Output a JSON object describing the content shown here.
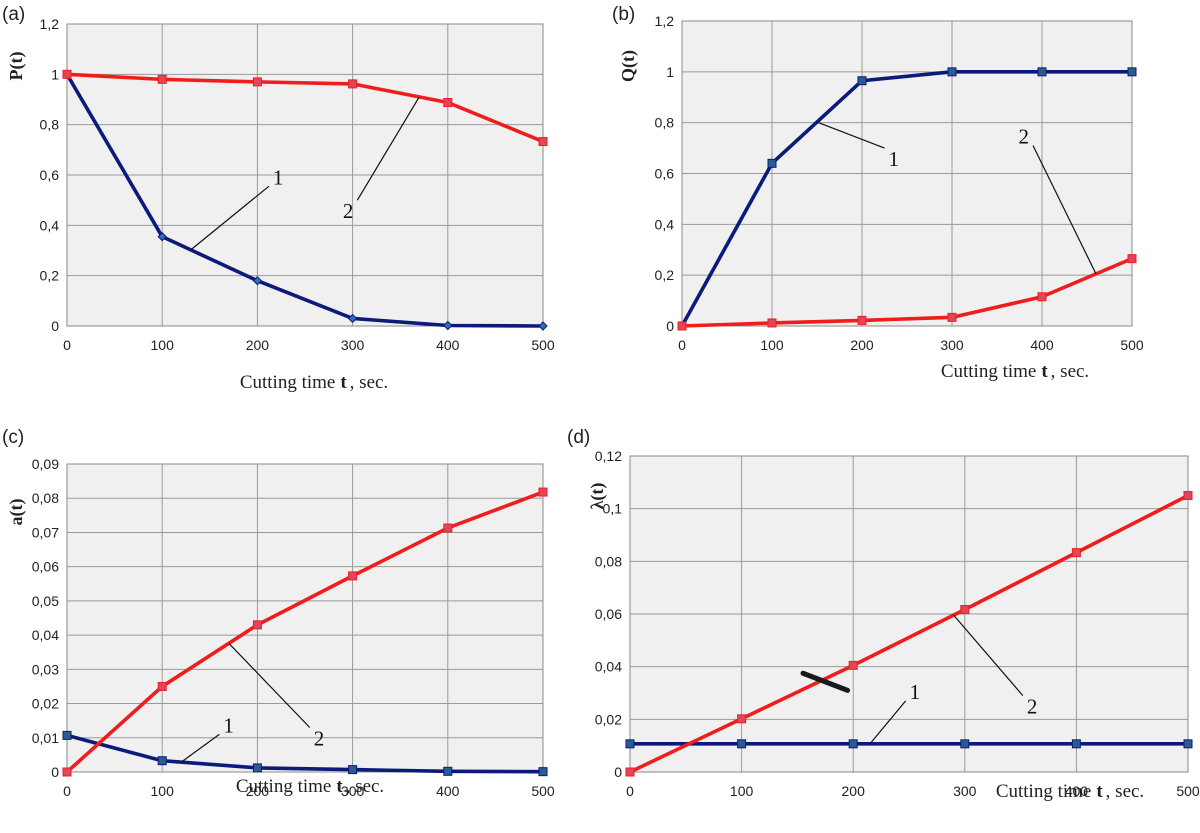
{
  "figure": {
    "background": "#ffffff",
    "plot_background": "#f0f0f0",
    "grid_color": "#9a9a9a"
  },
  "chart_data": [
    {
      "id": "a",
      "type": "line",
      "panel_label": "(a)",
      "ylabel": "P(t)",
      "xlabel": "Cutting time",
      "xlabel_var": "t",
      "xlabel_unit": ", sec.",
      "x": [
        0,
        100,
        200,
        300,
        400,
        500
      ],
      "xlim": [
        0,
        500
      ],
      "xticks": [
        "0",
        "100",
        "200",
        "300",
        "400",
        "500"
      ],
      "ylim": [
        0,
        1.2
      ],
      "yticks": [
        0,
        0.2,
        0.4,
        0.6,
        0.8,
        1,
        1.2
      ],
      "ytick_labels": [
        "0",
        "0,2",
        "0,4",
        "0,6",
        "0,8",
        "1",
        "1,2"
      ],
      "grid": true,
      "series": [
        {
          "name": "1",
          "color": "#0c1a7a",
          "marker": "diamond",
          "values": [
            1.0,
            0.355,
            0.18,
            0.03,
            0.002,
            0.0
          ]
        },
        {
          "name": "2",
          "color": "#f01d1d",
          "marker": "square",
          "values": [
            1.0,
            0.98,
            0.97,
            0.962,
            0.888,
            0.733
          ]
        }
      ],
      "annotations": [
        {
          "text": "1",
          "series": 0,
          "point_x": 130,
          "label_x": 212,
          "label_y": 0.555
        },
        {
          "text": "2",
          "series": 1,
          "point_x": 370,
          "label_x": 305,
          "label_y": 0.5
        }
      ]
    },
    {
      "id": "b",
      "type": "line",
      "panel_label": "(b)",
      "ylabel": "Q(t)",
      "xlabel": "Cutting time",
      "xlabel_var": "t",
      "xlabel_unit": ", sec.",
      "x": [
        0,
        100,
        200,
        300,
        400,
        500
      ],
      "xlim": [
        0,
        500
      ],
      "xticks": [
        "0",
        "100",
        "200",
        "300",
        "400",
        "500"
      ],
      "ylim": [
        0,
        1.2
      ],
      "yticks": [
        0,
        0.2,
        0.4,
        0.6,
        0.8,
        1,
        1.2
      ],
      "ytick_labels": [
        "0",
        "0,2",
        "0,4",
        "0,6",
        "0,8",
        "1",
        "1,2"
      ],
      "grid": true,
      "series": [
        {
          "name": "1",
          "color": "#0c1a7a",
          "marker": "square",
          "values": [
            0.0,
            0.64,
            0.965,
            1.0,
            1.0,
            1.0
          ]
        },
        {
          "name": "2",
          "color": "#f01d1d",
          "marker": "square",
          "values": [
            0.0,
            0.012,
            0.022,
            0.034,
            0.115,
            0.265
          ]
        }
      ],
      "annotations": [
        {
          "text": "1",
          "series": 0,
          "point_x": 150,
          "label_x": 225,
          "label_y": 0.7
        },
        {
          "text": "2",
          "series": 1,
          "point_x": 460,
          "label_x": 390,
          "label_y": 0.71
        }
      ]
    },
    {
      "id": "c",
      "type": "line",
      "panel_label": "(c)",
      "ylabel": "a(t)",
      "xlabel": "Cutting time",
      "xlabel_var": "t",
      "xlabel_unit": ", sec.",
      "x": [
        0,
        100,
        200,
        300,
        400,
        500
      ],
      "xlim": [
        0,
        500
      ],
      "xticks": [
        "0",
        "100",
        "200",
        "300",
        "400",
        "500"
      ],
      "ylim": [
        0,
        0.09
      ],
      "yticks": [
        0,
        0.01,
        0.02,
        0.03,
        0.04,
        0.05,
        0.06,
        0.07,
        0.08,
        0.09
      ],
      "ytick_labels": [
        "0",
        "0,01",
        "0,02",
        "0,03",
        "0,04",
        "0,05",
        "0,06",
        "0,07",
        "0,08",
        "0,09"
      ],
      "grid": true,
      "series": [
        {
          "name": "1",
          "color": "#0c1a7a",
          "marker": "square",
          "values": [
            0.0107,
            0.0033,
            0.0012,
            0.0007,
            0.0002,
            0.0001
          ]
        },
        {
          "name": "2",
          "color": "#f01d1d",
          "marker": "square",
          "values": [
            0.0,
            0.025,
            0.043,
            0.0573,
            0.0713,
            0.0818
          ]
        }
      ],
      "annotations": [
        {
          "text": "1",
          "series": 0,
          "point_x": 120,
          "label_x": 160,
          "label_y": 0.011
        },
        {
          "text": "2",
          "series": 1,
          "point_x": 170,
          "label_x": 255,
          "label_y": 0.013
        }
      ]
    },
    {
      "id": "d",
      "type": "line",
      "panel_label": "(d)",
      "ylabel": "λ(t)",
      "xlabel": "Cutting time",
      "xlabel_var": "t",
      "xlabel_unit": ", sec.",
      "x": [
        0,
        100,
        200,
        300,
        400,
        500
      ],
      "xlim": [
        0,
        500
      ],
      "xticks": [
        "0",
        "100",
        "200",
        "300",
        "400",
        "500"
      ],
      "ylim": [
        0,
        0.12
      ],
      "yticks": [
        0,
        0.02,
        0.04,
        0.06,
        0.08,
        0.1,
        0.12
      ],
      "ytick_labels": [
        "0",
        "0,02",
        "0,04",
        "0,06",
        "0,08",
        "0,1",
        "0,12"
      ],
      "grid": true,
      "series": [
        {
          "name": "1",
          "color": "#0c1a7a",
          "marker": "square",
          "values": [
            0.0107,
            0.0107,
            0.0107,
            0.0107,
            0.0107,
            0.0107
          ]
        },
        {
          "name": "2",
          "color": "#f01d1d",
          "marker": "square",
          "values": [
            0.0,
            0.0202,
            0.0405,
            0.0617,
            0.0833,
            0.105
          ]
        }
      ],
      "annotations": [
        {
          "text": "1",
          "series": 0,
          "point_x": 215,
          "label_x": 247,
          "label_y": 0.027
        },
        {
          "text": "2",
          "series": 1,
          "point_x": 290,
          "label_x": 352,
          "label_y": 0.029
        }
      ]
    }
  ]
}
